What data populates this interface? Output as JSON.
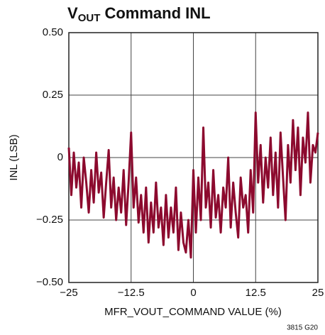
{
  "chart_data": {
    "type": "line",
    "title_parts": [
      "V",
      "OUT",
      " Command INL"
    ],
    "ylabel": "INL (LSB)",
    "xlabel": "MFR_VOUT_COMMAND VALUE (%)",
    "note": "3815 G20",
    "xlim": [
      -25,
      25
    ],
    "ylim": [
      -0.5,
      0.5
    ],
    "xticks": [
      {
        "value": -25,
        "label": "−25"
      },
      {
        "value": -12.5,
        "label": "−12.5"
      },
      0,
      12.5,
      25
    ],
    "yticks": [
      {
        "value": -0.5,
        "label": "−0.50"
      },
      {
        "value": -0.25,
        "label": "−0.25"
      },
      0,
      0.25,
      {
        "value": 0.5,
        "label": "0.50"
      }
    ],
    "grid": true,
    "series": [
      {
        "color": "#8c0a2e",
        "x": [
          -25,
          -24.5,
          -24,
          -23.5,
          -23,
          -22.5,
          -22,
          -21.5,
          -21,
          -20.5,
          -20,
          -19.5,
          -19,
          -18.5,
          -18,
          -17.5,
          -17,
          -16.5,
          -16,
          -15.5,
          -15,
          -14.5,
          -14,
          -13.5,
          -13,
          -12.5,
          -12,
          -11.5,
          -11,
          -10.5,
          -10,
          -9.5,
          -9,
          -8.5,
          -8,
          -7.5,
          -7,
          -6.5,
          -6,
          -5.5,
          -5,
          -4.5,
          -4,
          -3.5,
          -3,
          -2.5,
          -2,
          -1.5,
          -1,
          -0.5,
          0,
          0.5,
          1,
          1.5,
          2,
          2.5,
          3,
          3.5,
          4,
          4.5,
          5,
          5.5,
          6,
          6.5,
          7,
          7.5,
          8,
          8.5,
          9,
          9.5,
          10,
          10.5,
          11,
          11.5,
          12,
          12.5,
          13,
          13.5,
          14,
          14.5,
          15,
          15.5,
          16,
          16.5,
          17,
          17.5,
          18,
          18.5,
          19,
          19.5,
          20,
          20.5,
          21,
          21.5,
          22,
          22.5,
          23,
          23.5,
          24,
          24.5,
          25
        ],
        "values": [
          0.04,
          -0.15,
          0.02,
          -0.12,
          -0.02,
          -0.2,
          0.0,
          -0.1,
          -0.22,
          -0.05,
          -0.18,
          0.02,
          -0.14,
          -0.06,
          -0.24,
          -0.1,
          0.03,
          -0.2,
          -0.08,
          -0.25,
          -0.12,
          -0.22,
          -0.05,
          -0.27,
          -0.1,
          0.1,
          -0.2,
          -0.08,
          -0.26,
          -0.15,
          -0.3,
          -0.12,
          -0.34,
          -0.18,
          -0.3,
          -0.1,
          -0.28,
          -0.2,
          -0.35,
          -0.15,
          -0.32,
          -0.2,
          -0.3,
          -0.12,
          -0.37,
          -0.22,
          -0.34,
          -0.38,
          -0.25,
          -0.4,
          -0.05,
          -0.3,
          -0.08,
          -0.25,
          0.12,
          -0.2,
          -0.1,
          -0.28,
          -0.05,
          -0.24,
          -0.15,
          -0.3,
          -0.12,
          -0.2,
          0.0,
          -0.28,
          -0.1,
          -0.22,
          -0.32,
          -0.08,
          -0.2,
          -0.15,
          -0.3,
          -0.05,
          -0.22,
          0.18,
          -0.1,
          0.05,
          -0.18,
          0.0,
          -0.12,
          0.08,
          -0.15,
          0.02,
          -0.2,
          0.1,
          -0.08,
          -0.25,
          0.05,
          -0.1,
          0.15,
          -0.05,
          0.12,
          -0.15,
          0.08,
          -0.02,
          0.18,
          -0.1,
          0.05,
          0.02,
          0.1
        ]
      }
    ]
  }
}
